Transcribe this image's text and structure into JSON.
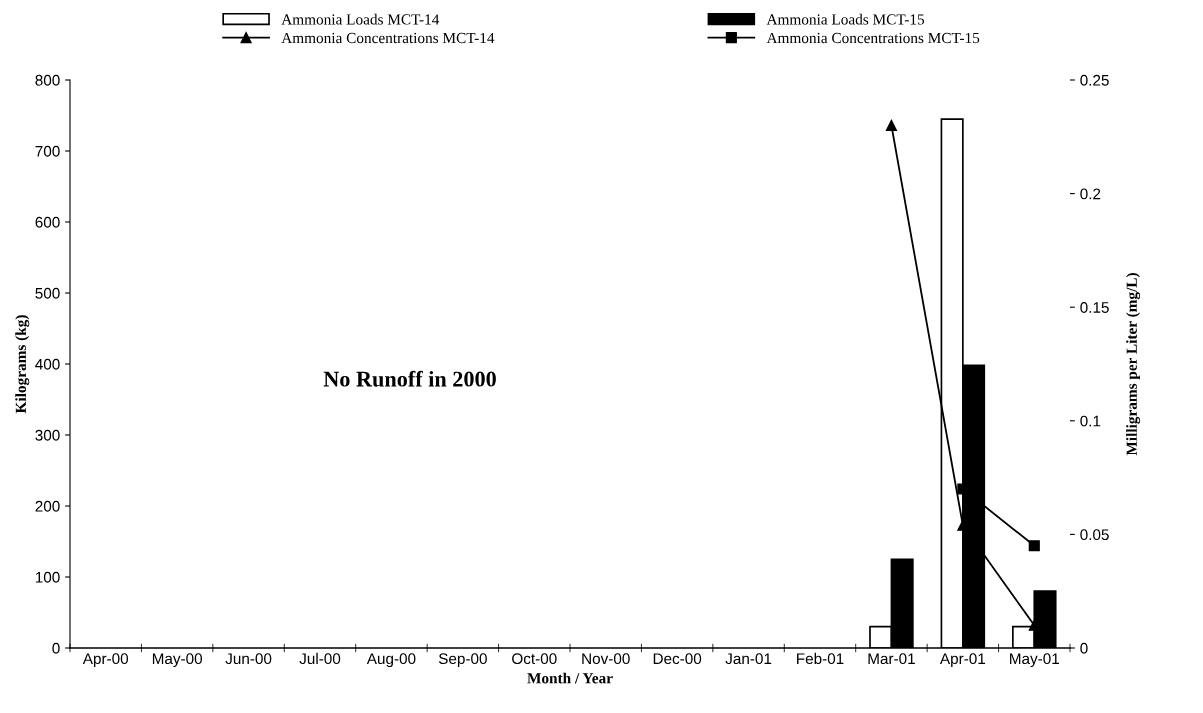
{
  "chart_data": {
    "type": "bar",
    "xlabel": "Month / Year",
    "ylabel": "Kilograms (kg)",
    "y2label": "Milligrams per Liter (mg/L)",
    "categories": [
      "Apr-00",
      "May-00",
      "Jun-00",
      "Jul-00",
      "Aug-00",
      "Sep-00",
      "Oct-00",
      "Nov-00",
      "Dec-00",
      "Jan-01",
      "Feb-01",
      "Mar-01",
      "Apr-01",
      "May-01"
    ],
    "series": [
      {
        "name": "Ammonia Loads MCT-14",
        "color": "#ffffff",
        "values": [
          null,
          null,
          null,
          null,
          null,
          null,
          null,
          null,
          null,
          null,
          null,
          30,
          745,
          30
        ]
      },
      {
        "name": "Ammonia Loads MCT-15",
        "color": "#000000",
        "values": [
          null,
          null,
          null,
          null,
          null,
          null,
          null,
          null,
          null,
          null,
          null,
          125,
          398,
          80
        ]
      },
      {
        "name": "Ammonia Concentrations MCT-14",
        "type": "line",
        "axis": "y2",
        "marker": "triangle",
        "color": "#000000",
        "values": [
          null,
          null,
          null,
          null,
          null,
          null,
          null,
          null,
          null,
          null,
          null,
          0.23,
          0.054,
          0.01
        ]
      },
      {
        "name": "Ammonia Concentrations MCT-15",
        "type": "line",
        "axis": "y2",
        "marker": "square",
        "color": "#000000",
        "values": [
          null,
          null,
          null,
          null,
          null,
          null,
          null,
          null,
          null,
          null,
          null,
          null,
          0.07,
          0.045
        ]
      }
    ],
    "ylim": [
      0,
      800
    ],
    "yticks": [
      0,
      100,
      200,
      300,
      400,
      500,
      600,
      700,
      800
    ],
    "y2lim": [
      0,
      0.25
    ],
    "y2ticks": [
      0,
      0.05,
      0.1,
      0.15,
      0.2,
      0.25
    ],
    "annotations": [
      "No Runoff in 2000"
    ],
    "legend": "top",
    "grid": false
  }
}
